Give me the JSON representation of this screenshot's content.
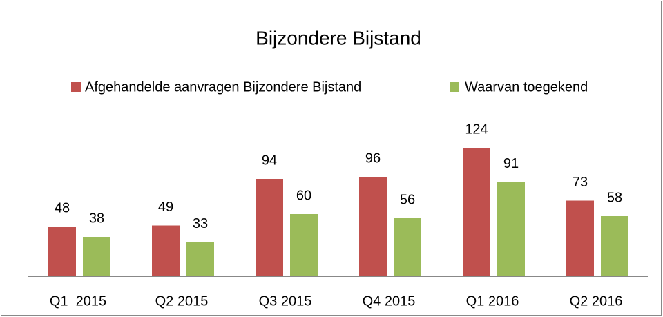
{
  "chart_data": {
    "type": "bar",
    "title": "Bijzondere Bijstand",
    "categories": [
      "Q1  2015",
      "Q2 2015",
      "Q3 2015",
      "Q4 2015",
      "Q1 2016",
      "Q2 2016"
    ],
    "series": [
      {
        "name": "Afgehandelde aanvragen Bijzondere Bijstand",
        "color": "#c0504d",
        "values": [
          48,
          49,
          94,
          96,
          124,
          73
        ]
      },
      {
        "name": "Waarvan toegekend",
        "color": "#9bbb59",
        "values": [
          38,
          33,
          60,
          56,
          91,
          58
        ]
      }
    ],
    "legend": "top"
  }
}
